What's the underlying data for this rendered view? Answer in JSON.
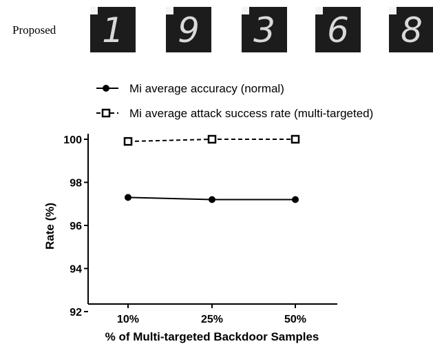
{
  "header": {
    "row_label": "Proposed"
  },
  "digit_tiles": [
    {
      "digit": "1"
    },
    {
      "digit": "9"
    },
    {
      "digit": "3"
    },
    {
      "digit": "6"
    },
    {
      "digit": "8"
    }
  ],
  "chart_data": {
    "type": "line",
    "categories": [
      "10%",
      "25%",
      "50%"
    ],
    "series": [
      {
        "name": "Mi average accuracy (normal)",
        "marker": "filled-circle",
        "line": "solid",
        "color": "#000000",
        "values": [
          97.3,
          97.2,
          97.2
        ]
      },
      {
        "name": "Mi average attack success rate (multi-targeted)",
        "marker": "open-square",
        "line": "dashed",
        "color": "#000000",
        "values": [
          99.9,
          100.0,
          100.0
        ]
      }
    ],
    "title": "",
    "xlabel": "% of Multi-targeted Backdoor Samples",
    "ylabel": "Rate (%)",
    "ylim": [
      92,
      100
    ],
    "yticks": [
      92,
      94,
      96,
      98,
      100
    ],
    "grid": false,
    "legend_position": "top"
  }
}
